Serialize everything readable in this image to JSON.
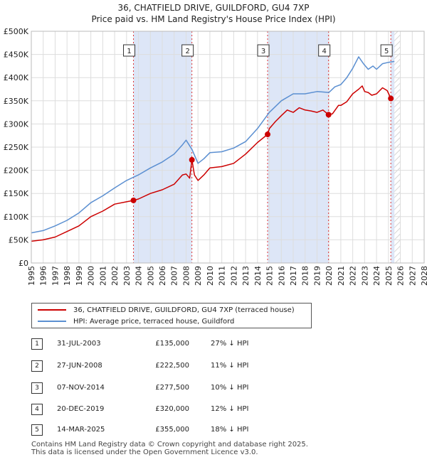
{
  "header": {
    "title": "36, CHATFIELD DRIVE, GUILDFORD, GU4 7XP",
    "subtitle": "Price paid vs. HM Land Registry's House Price Index (HPI)"
  },
  "colors": {
    "price_line": "#cc0000",
    "hpi_line": "#5b8fd1",
    "shade": "#dde6f7",
    "grid": "#dddddd"
  },
  "chart_data": {
    "type": "line",
    "title": "Price paid vs. HM Land Registry's House Price Index (HPI)",
    "xlim": [
      1995,
      2028
    ],
    "ylim": [
      0,
      500000
    ],
    "x_ticks": [
      1995,
      1996,
      1997,
      1998,
      1999,
      2000,
      2001,
      2002,
      2003,
      2004,
      2005,
      2006,
      2007,
      2008,
      2009,
      2010,
      2011,
      2012,
      2013,
      2014,
      2015,
      2016,
      2017,
      2018,
      2019,
      2020,
      2021,
      2022,
      2023,
      2024,
      2025,
      2026,
      2027,
      2028
    ],
    "y_ticks": [
      0,
      50000,
      100000,
      150000,
      200000,
      250000,
      300000,
      350000,
      400000,
      450000,
      500000
    ],
    "y_tick_labels": [
      "£0",
      "£50K",
      "£100K",
      "£150K",
      "£200K",
      "£250K",
      "£300K",
      "£350K",
      "£400K",
      "£450K",
      "£500K"
    ],
    "shaded_periods": [
      [
        2003.58,
        2008.49
      ],
      [
        2014.85,
        2019.97
      ],
      [
        2025.2,
        2025.5
      ]
    ],
    "hatched_future_from": 2025.5,
    "series": [
      {
        "name": "36, CHATFIELD DRIVE, GUILDFORD, GU4 7XP (terraced house)",
        "color": "#cc0000",
        "x": [
          1995.0,
          1996.0,
          1997.0,
          1998.0,
          1999.0,
          2000.0,
          2001.0,
          2002.0,
          2003.0,
          2003.58,
          2004.0,
          2005.0,
          2006.0,
          2007.0,
          2007.7,
          2008.0,
          2008.3,
          2008.49,
          2008.7,
          2009.0,
          2009.5,
          2010.0,
          2011.0,
          2012.0,
          2013.0,
          2014.0,
          2014.85,
          2015.0,
          2015.5,
          2016.0,
          2016.5,
          2017.0,
          2017.5,
          2018.0,
          2018.5,
          2019.0,
          2019.5,
          2019.97,
          2020.3,
          2020.8,
          2021.0,
          2021.5,
          2022.0,
          2022.5,
          2022.8,
          2023.0,
          2023.3,
          2023.6,
          2024.0,
          2024.5,
          2024.9,
          2025.2
        ],
        "y": [
          47000,
          50000,
          56000,
          68000,
          80000,
          100000,
          112000,
          127000,
          132000,
          135000,
          138000,
          150000,
          158000,
          170000,
          190000,
          192000,
          183000,
          222500,
          190000,
          178000,
          190000,
          205000,
          208000,
          215000,
          235000,
          260000,
          277500,
          290000,
          305000,
          318000,
          330000,
          325000,
          335000,
          330000,
          328000,
          325000,
          330000,
          320000,
          322000,
          340000,
          340000,
          348000,
          365000,
          375000,
          382000,
          370000,
          368000,
          362000,
          365000,
          378000,
          372000,
          355000
        ]
      },
      {
        "name": "HPI: Average price, terraced house, Guildford",
        "color": "#5b8fd1",
        "x": [
          1995.0,
          1996.0,
          1997.0,
          1998.0,
          1999.0,
          2000.0,
          2001.0,
          2002.0,
          2003.0,
          2004.0,
          2005.0,
          2006.0,
          2007.0,
          2007.7,
          2008.0,
          2008.5,
          2009.0,
          2009.5,
          2010.0,
          2011.0,
          2012.0,
          2013.0,
          2014.0,
          2015.0,
          2016.0,
          2017.0,
          2018.0,
          2019.0,
          2020.0,
          2020.5,
          2021.0,
          2021.5,
          2022.0,
          2022.5,
          2022.9,
          2023.3,
          2023.7,
          2024.0,
          2024.5,
          2025.0,
          2025.5
        ],
        "y": [
          65000,
          70000,
          80000,
          92000,
          108000,
          130000,
          145000,
          162000,
          178000,
          190000,
          205000,
          218000,
          235000,
          255000,
          265000,
          245000,
          215000,
          225000,
          238000,
          240000,
          248000,
          262000,
          290000,
          325000,
          350000,
          365000,
          365000,
          370000,
          368000,
          380000,
          385000,
          400000,
          420000,
          445000,
          430000,
          418000,
          425000,
          418000,
          430000,
          433000,
          435000
        ]
      }
    ],
    "transactions": [
      {
        "label": "1",
        "date": "31-JUL-2003",
        "x": 2003.58,
        "price_text": "£135,000",
        "price": 135000,
        "hpi_diff": "27% ↓ HPI"
      },
      {
        "label": "2",
        "date": "27-JUN-2008",
        "x": 2008.49,
        "price_text": "£222,500",
        "price": 222500,
        "hpi_diff": "11% ↓ HPI"
      },
      {
        "label": "3",
        "date": "07-NOV-2014",
        "x": 2014.85,
        "price_text": "£277,500",
        "price": 277500,
        "hpi_diff": "10% ↓ HPI"
      },
      {
        "label": "4",
        "date": "20-DEC-2019",
        "x": 2019.97,
        "price_text": "£320,000",
        "price": 320000,
        "hpi_diff": "12% ↓ HPI"
      },
      {
        "label": "5",
        "date": "14-MAR-2025",
        "x": 2025.2,
        "price_text": "£355,000",
        "price": 355000,
        "hpi_diff": "18% ↓ HPI"
      }
    ]
  },
  "legend": {
    "price_label": "36, CHATFIELD DRIVE, GUILDFORD, GU4 7XP (terraced house)",
    "hpi_label": "HPI: Average price, terraced house, Guildford"
  },
  "footer": {
    "line1": "Contains HM Land Registry data © Crown copyright and database right 2025.",
    "line2": "This data is licensed under the Open Government Licence v3.0."
  }
}
